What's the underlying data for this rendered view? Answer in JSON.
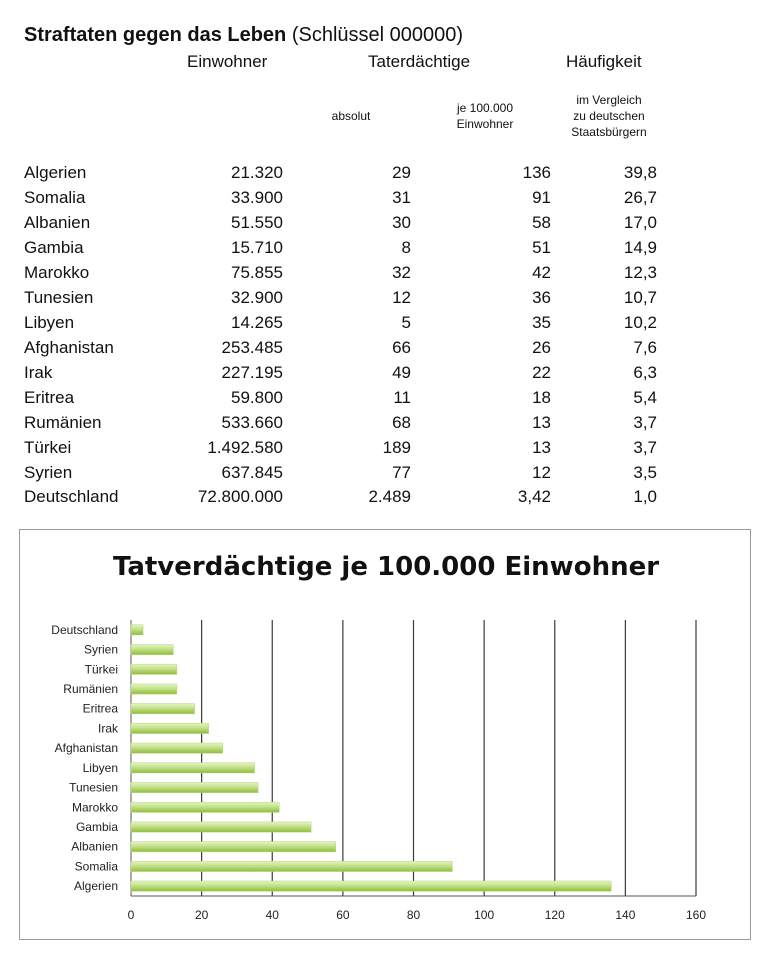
{
  "table": {
    "title_bold": "Straftaten gegen das Leben",
    "title_rest": " (Schlüssel 000000)",
    "headers": {
      "population": "Einwohner",
      "suspects": "Taterdächtige",
      "frequency": "Häufigkeit",
      "absolute": "absolut",
      "per100k_line1": "je 100.000",
      "per100k_line2": "Einwohner",
      "compare_line1": "im Vergleich",
      "compare_line2": "zu deutschen",
      "compare_line3": "Staatsbürgern"
    },
    "rows": [
      {
        "country": "Algerien",
        "population": "21.320",
        "absolute": "29",
        "per100k": "136",
        "frequency": "39,8"
      },
      {
        "country": "Somalia",
        "population": "33.900",
        "absolute": "31",
        "per100k": "91",
        "frequency": "26,7"
      },
      {
        "country": "Albanien",
        "population": "51.550",
        "absolute": "30",
        "per100k": "58",
        "frequency": "17,0"
      },
      {
        "country": "Gambia",
        "population": "15.710",
        "absolute": "8",
        "per100k": "51",
        "frequency": "14,9"
      },
      {
        "country": "Marokko",
        "population": "75.855",
        "absolute": "32",
        "per100k": "42",
        "frequency": "12,3"
      },
      {
        "country": "Tunesien",
        "population": "32.900",
        "absolute": "12",
        "per100k": "36",
        "frequency": "10,7"
      },
      {
        "country": "Libyen",
        "population": "14.265",
        "absolute": "5",
        "per100k": "35",
        "frequency": "10,2"
      },
      {
        "country": "Afghanistan",
        "population": "253.485",
        "absolute": "66",
        "per100k": "26",
        "frequency": "7,6"
      },
      {
        "country": "Irak",
        "population": "227.195",
        "absolute": "49",
        "per100k": "22",
        "frequency": "6,3"
      },
      {
        "country": "Eritrea",
        "population": "59.800",
        "absolute": "11",
        "per100k": "18",
        "frequency": "5,4"
      },
      {
        "country": "Rumänien",
        "population": "533.660",
        "absolute": "68",
        "per100k": "13",
        "frequency": "3,7"
      },
      {
        "country": "Türkei",
        "population": "1.492.580",
        "absolute": "189",
        "per100k": "13",
        "frequency": "3,7"
      },
      {
        "country": "Syrien",
        "population": "637.845",
        "absolute": "77",
        "per100k": "12",
        "frequency": "3,5"
      },
      {
        "country": "Deutschland",
        "population": "72.800.000",
        "absolute": "2.489",
        "per100k": "3,42",
        "frequency": "1,0"
      }
    ]
  },
  "chart_data": {
    "type": "bar",
    "orientation": "horizontal",
    "title": "Tatverdächtige je 100.000 Einwohner",
    "categories": [
      "Deutschland",
      "Syrien",
      "Türkei",
      "Rumänien",
      "Eritrea",
      "Irak",
      "Afghanistan",
      "Libyen",
      "Tunesien",
      "Marokko",
      "Gambia",
      "Albanien",
      "Somalia",
      "Algerien"
    ],
    "values": [
      3.42,
      12,
      13,
      13,
      18,
      22,
      26,
      35,
      36,
      42,
      51,
      58,
      91,
      136
    ],
    "xlim": [
      0,
      160
    ],
    "xticks": [
      0,
      20,
      40,
      60,
      80,
      100,
      120,
      140,
      160
    ],
    "grid": true,
    "legend": "none",
    "colors": {
      "bar_light": "#d6ecaa",
      "bar_dark": "#8fbd3c",
      "grid": "#3a3a3a"
    }
  }
}
